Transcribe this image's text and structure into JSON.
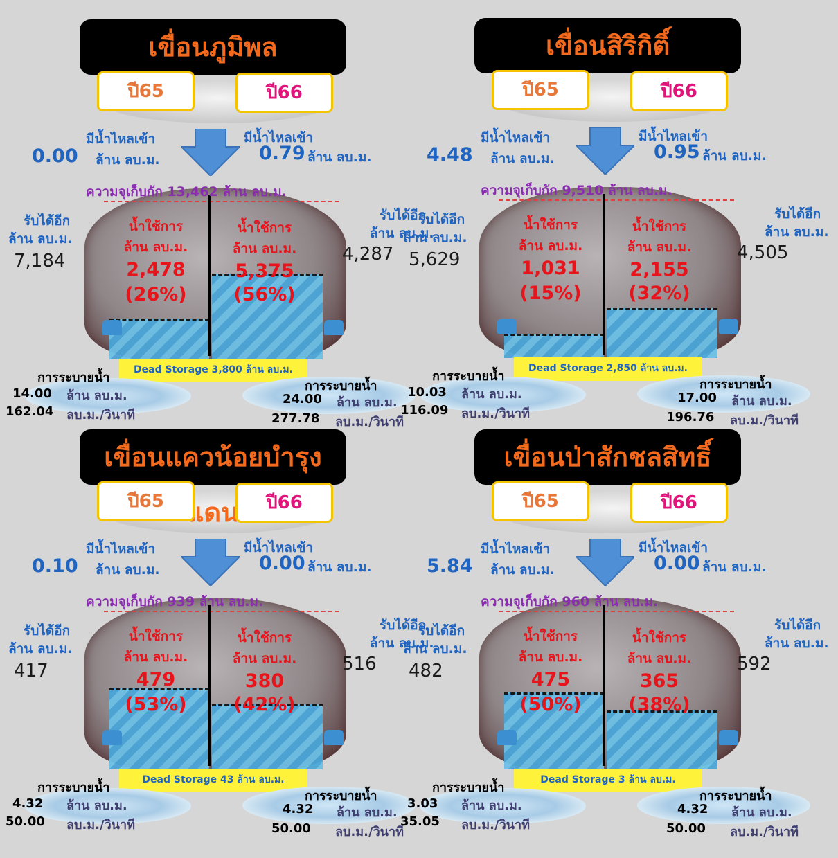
{
  "dams": [
    {
      "title": "เขื่อนภูมิพล",
      "year65": "ปี65",
      "year66": "ปี66",
      "inflow_label": "มีน้ำไหลเข้า",
      "unit": "ล้าน ลบ.ม.",
      "inflow65": "0.00",
      "inflow66": "0.79",
      "capacity_text": "ความจุเก็บกัก 13,462 ล้าน ลบ.ม.",
      "avail_label": "รับได้อีก",
      "avail65": "7,184",
      "avail66": "4,287",
      "usable_label": "น้ำใช้การ",
      "usable65": "2,478",
      "pct65": "(26%)",
      "usable66": "5,375",
      "pct66": "(56%)",
      "level65_pct": 26,
      "level66_pct": 56,
      "dead_storage": "Dead Storage 3,800 ล้าน ลบ.ม.",
      "release_label": "การระบายน้ำ",
      "release65_m3": "14.00",
      "release65_rate": "162.04",
      "release66_m3": "24.00",
      "release66_rate": "277.78",
      "rate_unit": "ลบ.ม./วินาที"
    },
    {
      "title": "เขื่อนสิริกิติ์",
      "year65": "ปี65",
      "year66": "ปี66",
      "inflow_label": "มีน้ำไหลเข้า",
      "unit": "ล้าน ลบ.ม.",
      "inflow65": "4.48",
      "inflow66": "0.95",
      "capacity_text": "ความจุเก็บกัก 9,510 ล้าน ลบ.ม.",
      "avail_label": "รับได้อีก",
      "avail65": "5,629",
      "avail66": "4,505",
      "usable_label": "น้ำใช้การ",
      "usable65": "1,031",
      "pct65": "(15%)",
      "usable66": "2,155",
      "pct66": "(32%)",
      "level65_pct": 15,
      "level66_pct": 32,
      "dead_storage": "Dead Storage 2,850 ล้าน ลบ.ม.",
      "release_label": "การระบายน้ำ",
      "release65_m3": "10.03",
      "release65_rate": "116.09",
      "release66_m3": "17.00",
      "release66_rate": "196.76",
      "rate_unit": "ลบ.ม./วินาที"
    },
    {
      "title": "เขื่อนแควน้อยบำรุงแดน",
      "year65": "ปี65",
      "year66": "ปี66",
      "inflow_label": "มีน้ำไหลเข้า",
      "unit": "ล้าน ลบ.ม.",
      "inflow65": "0.10",
      "inflow66": "0.00",
      "capacity_text": "ความจุเก็บกัก 939 ล้าน ลบ.ม.",
      "avail_label": "รับได้อีก",
      "avail65": "417",
      "avail66": "516",
      "usable_label": "น้ำใช้การ",
      "usable65": "479",
      "pct65": "(53%)",
      "usable66": "380",
      "pct66": "(42%)",
      "level65_pct": 53,
      "level66_pct": 42,
      "dead_storage": "Dead Storage 43 ล้าน ลบ.ม.",
      "release_label": "การระบายน้ำ",
      "release65_m3": "4.32",
      "release65_rate": "50.00",
      "release66_m3": "4.32",
      "release66_rate": "50.00",
      "rate_unit": "ลบ.ม./วินาที"
    },
    {
      "title": "เขื่อนป่าสักชลสิทธิ์",
      "year65": "ปี65",
      "year66": "ปี66",
      "inflow_label": "มีน้ำไหลเข้า",
      "unit": "ล้าน ลบ.ม.",
      "inflow65": "5.84",
      "inflow66": "0.00",
      "capacity_text": "ความจุเก็บกัก 960 ล้าน ลบ.ม.",
      "avail_label": "รับได้อีก",
      "avail65": "482",
      "avail66": "592",
      "usable_label": "น้ำใช้การ",
      "usable65": "475",
      "pct65": "(50%)",
      "usable66": "365",
      "pct66": "(38%)",
      "level65_pct": 50,
      "level66_pct": 38,
      "dead_storage": "Dead Storage 3 ล้าน ลบ.ม.",
      "release_label": "การระบายน้ำ",
      "release65_m3": "3.03",
      "release65_rate": "35.05",
      "release66_m3": "4.32",
      "release66_rate": "50.00",
      "rate_unit": "ลบ.ม./วินาที"
    }
  ],
  "colors": {
    "title_text": "#f46a1c",
    "year65": "#e8783a",
    "year66": "#e0147a",
    "inflow": "#1f64c0",
    "capacity": "#8a2db0",
    "usable": "#e8141c",
    "dead_storage_bg": "#fff23a",
    "water": "#4aa6d8"
  },
  "icons": [
    "arrow-down-icon",
    "tap-icon",
    "cloud-icon",
    "water-splash-icon",
    "jar-icon"
  ]
}
